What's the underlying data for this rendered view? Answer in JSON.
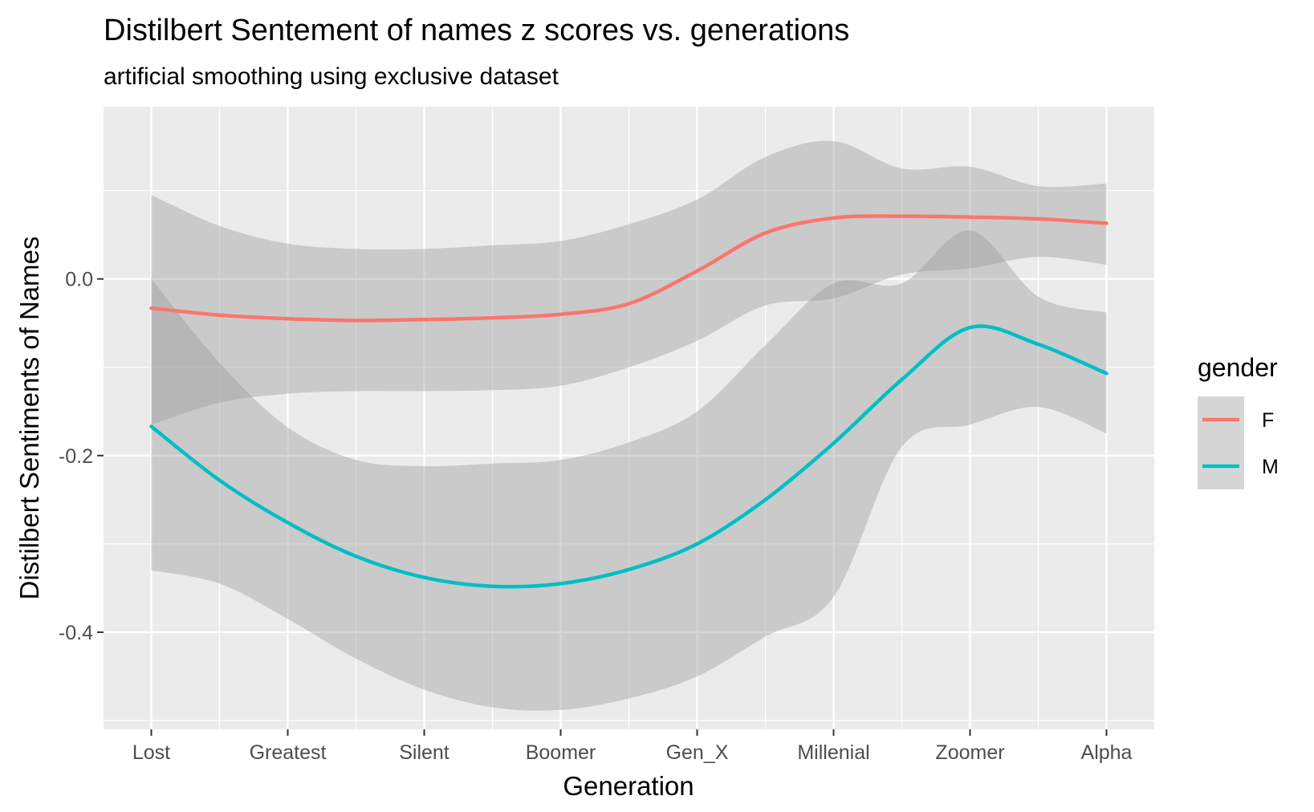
{
  "chart_data": {
    "type": "line",
    "title": "Distilbert Sentement of names z scores vs. generations",
    "subtitle": "artificial smoothing using exclusive dataset",
    "xlabel": "Generation",
    "ylabel": "Distilbert Sentiments of Names",
    "categories": [
      "Lost",
      "Greatest",
      "Silent",
      "Boomer",
      "Gen_X",
      "Millenial",
      "Zoomer",
      "Alpha"
    ],
    "ylim": [
      -0.51,
      0.195
    ],
    "yticks": [
      {
        "value": 0.0,
        "label": "0.0"
      },
      {
        "value": -0.2,
        "label": "-0.2"
      },
      {
        "value": -0.4,
        "label": "-0.4"
      }
    ],
    "grid": true,
    "legend": {
      "title": "gender",
      "position": "right"
    },
    "series": [
      {
        "name": "F",
        "color": "#F8766D",
        "x": [
          1,
          1.5,
          2,
          2.5,
          3,
          3.5,
          4,
          4.5,
          5,
          5.5,
          6,
          6.5,
          7,
          7.5,
          8
        ],
        "y": [
          -0.033,
          -0.041,
          -0.045,
          -0.047,
          -0.046,
          -0.044,
          -0.04,
          -0.028,
          0.009,
          0.052,
          0.069,
          0.071,
          0.07,
          0.068,
          0.063
        ],
        "lower": [
          -0.165,
          -0.14,
          -0.13,
          -0.127,
          -0.127,
          -0.126,
          -0.121,
          -0.1,
          -0.07,
          -0.03,
          -0.022,
          0.005,
          0.012,
          0.025,
          0.016
        ],
        "upper": [
          0.095,
          0.06,
          0.04,
          0.034,
          0.034,
          0.038,
          0.043,
          0.062,
          0.09,
          0.138,
          0.156,
          0.125,
          0.127,
          0.105,
          0.108
        ]
      },
      {
        "name": "M",
        "color": "#00BFC4",
        "x": [
          1,
          1.5,
          2,
          2.5,
          3,
          3.5,
          4,
          4.5,
          5,
          5.5,
          6,
          6.5,
          7,
          7.5,
          8
        ],
        "y": [
          -0.167,
          -0.228,
          -0.276,
          -0.314,
          -0.338,
          -0.348,
          -0.345,
          -0.329,
          -0.3,
          -0.25,
          -0.186,
          -0.114,
          -0.055,
          -0.074,
          -0.107
        ],
        "lower": [
          -0.33,
          -0.345,
          -0.385,
          -0.43,
          -0.465,
          -0.485,
          -0.488,
          -0.475,
          -0.45,
          -0.405,
          -0.36,
          -0.19,
          -0.165,
          -0.145,
          -0.175
        ],
        "upper": [
          0.0,
          -0.095,
          -0.168,
          -0.205,
          -0.212,
          -0.209,
          -0.205,
          -0.185,
          -0.15,
          -0.075,
          -0.005,
          -0.005,
          0.055,
          -0.02,
          -0.038
        ]
      }
    ]
  }
}
